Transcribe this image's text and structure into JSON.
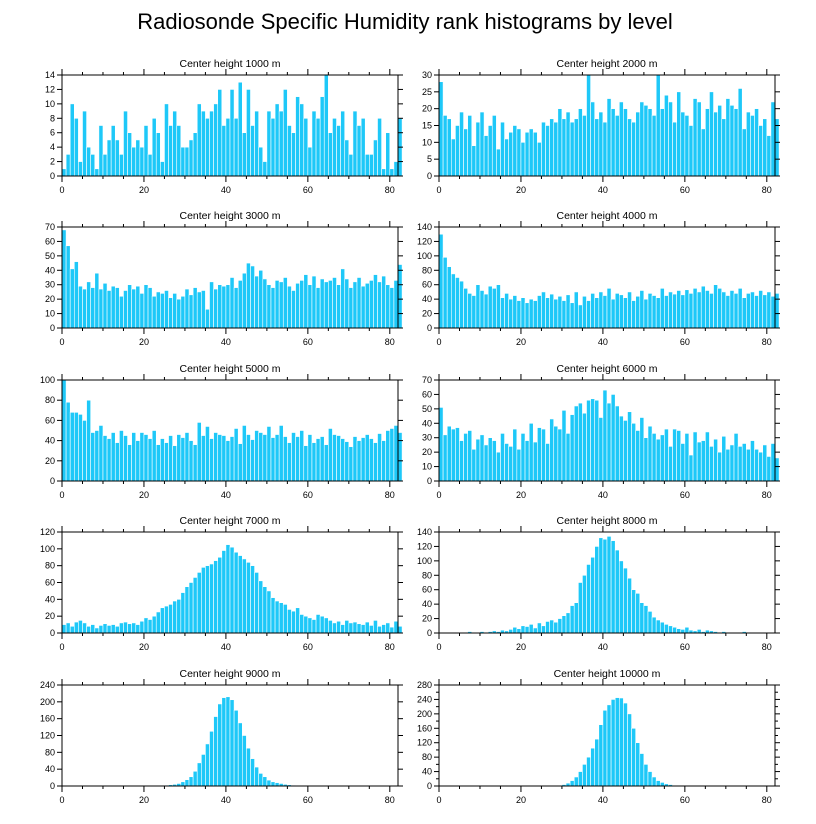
{
  "title": "Radiosonde Specific Humidity rank histograms by level",
  "bar_color": "#1ec8f8",
  "bar_edge_color": "#ffffff",
  "chart_data": [
    {
      "type": "bar",
      "title": "Center height 1000 m",
      "xlim": [
        0,
        82
      ],
      "ylim": [
        0,
        14
      ],
      "xticks": [
        0,
        20,
        40,
        60,
        80
      ],
      "yticks": [
        0,
        2,
        4,
        6,
        8,
        10,
        12,
        14
      ],
      "values": [
        1,
        3,
        10,
        8,
        2,
        9,
        4,
        3,
        1,
        7,
        3,
        5,
        7,
        5,
        3,
        9,
        6,
        4,
        5,
        4,
        7,
        3,
        8,
        6,
        2,
        10,
        7,
        9,
        7,
        4,
        4,
        5,
        6,
        10,
        9,
        8,
        9,
        10,
        12,
        7,
        8,
        12,
        8,
        13,
        6,
        12,
        7,
        9,
        4,
        2,
        9,
        8,
        10,
        9,
        12,
        7,
        6,
        11,
        10,
        8,
        4,
        9,
        8,
        11,
        14,
        6,
        8,
        7,
        9,
        5,
        3,
        9,
        7,
        8,
        3,
        3,
        5,
        8,
        1,
        6,
        1,
        2,
        8
      ]
    },
    {
      "type": "bar",
      "title": "Center height 2000 m",
      "xlim": [
        0,
        82
      ],
      "ylim": [
        0,
        30
      ],
      "xticks": [
        0,
        20,
        40,
        60,
        80
      ],
      "yticks": [
        0,
        5,
        10,
        15,
        20,
        25,
        30
      ],
      "values": [
        28,
        18,
        17,
        11,
        15,
        19,
        14,
        18,
        9,
        16,
        19,
        12,
        15,
        18,
        8,
        16,
        11,
        13,
        15,
        14,
        10,
        13,
        14,
        13,
        10,
        16,
        15,
        17,
        16,
        20,
        17,
        19,
        16,
        17,
        20,
        18,
        30,
        22,
        17,
        19,
        16,
        23,
        20,
        18,
        22,
        20,
        17,
        16,
        19,
        22,
        21,
        20,
        18,
        30,
        20,
        24,
        22,
        16,
        25,
        19,
        18,
        15,
        23,
        22,
        14,
        20,
        25,
        19,
        21,
        17,
        23,
        21,
        20,
        26,
        14,
        19,
        18,
        20,
        15,
        17,
        12,
        22,
        17
      ]
    },
    {
      "type": "bar",
      "title": "Center height 3000 m",
      "xlim": [
        0,
        82
      ],
      "ylim": [
        0,
        70
      ],
      "xticks": [
        0,
        20,
        40,
        60,
        80
      ],
      "yticks": [
        0,
        10,
        20,
        30,
        40,
        50,
        60,
        70
      ],
      "values": [
        68,
        57,
        41,
        46,
        29,
        27,
        32,
        28,
        38,
        27,
        31,
        26,
        29,
        28,
        22,
        26,
        30,
        27,
        29,
        24,
        30,
        28,
        22,
        25,
        24,
        26,
        21,
        24,
        20,
        22,
        27,
        23,
        28,
        25,
        26,
        13,
        32,
        27,
        30,
        29,
        30,
        35,
        28,
        33,
        38,
        45,
        43,
        36,
        40,
        34,
        30,
        28,
        33,
        32,
        35,
        29,
        26,
        31,
        33,
        37,
        30,
        36,
        28,
        34,
        32,
        33,
        35,
        30,
        41,
        34,
        28,
        32,
        35,
        29,
        31,
        33,
        37,
        32,
        36,
        30,
        28,
        33,
        44
      ]
    },
    {
      "type": "bar",
      "title": "Center height 4000 m",
      "xlim": [
        0,
        82
      ],
      "ylim": [
        0,
        140
      ],
      "xticks": [
        0,
        20,
        40,
        60,
        80
      ],
      "yticks": [
        0,
        20,
        40,
        60,
        80,
        100,
        120,
        140
      ],
      "values": [
        130,
        98,
        85,
        75,
        70,
        65,
        55,
        48,
        45,
        60,
        52,
        47,
        58,
        55,
        60,
        42,
        48,
        40,
        45,
        38,
        42,
        35,
        40,
        38,
        45,
        50,
        42,
        47,
        40,
        44,
        38,
        46,
        35,
        50,
        32,
        44,
        38,
        48,
        42,
        50,
        45,
        55,
        40,
        48,
        46,
        42,
        50,
        38,
        44,
        52,
        40,
        48,
        45,
        42,
        55,
        45,
        50,
        47,
        52,
        46,
        53,
        48,
        55,
        50,
        58,
        52,
        48,
        60,
        55,
        50,
        45,
        52,
        48,
        55,
        42,
        48,
        50,
        45,
        52,
        46,
        50,
        44,
        48
      ]
    },
    {
      "type": "bar",
      "title": "Center height 5000 m",
      "xlim": [
        0,
        82
      ],
      "ylim": [
        0,
        100
      ],
      "xticks": [
        0,
        20,
        40,
        60,
        80
      ],
      "yticks": [
        0,
        20,
        40,
        60,
        80,
        100
      ],
      "values": [
        100,
        78,
        68,
        68,
        66,
        60,
        80,
        48,
        50,
        55,
        45,
        42,
        48,
        38,
        50,
        45,
        36,
        48,
        40,
        48,
        46,
        42,
        50,
        36,
        42,
        38,
        45,
        35,
        46,
        43,
        48,
        40,
        36,
        58,
        45,
        54,
        42,
        48,
        46,
        45,
        40,
        44,
        52,
        37,
        55,
        46,
        41,
        50,
        48,
        46,
        54,
        43,
        46,
        55,
        44,
        38,
        48,
        44,
        50,
        35,
        46,
        38,
        42,
        44,
        36,
        52,
        46,
        45,
        42,
        39,
        34,
        44,
        40,
        43,
        46,
        42,
        38,
        47,
        40,
        50,
        52,
        55,
        48
      ]
    },
    {
      "type": "bar",
      "title": "Center height 6000 m",
      "xlim": [
        0,
        82
      ],
      "ylim": [
        0,
        70
      ],
      "xticks": [
        0,
        20,
        40,
        60,
        80
      ],
      "yticks": [
        0,
        10,
        20,
        30,
        40,
        50,
        60,
        70
      ],
      "values": [
        51,
        32,
        38,
        36,
        37,
        28,
        33,
        35,
        22,
        29,
        32,
        25,
        30,
        28,
        20,
        33,
        26,
        24,
        36,
        22,
        33,
        28,
        40,
        27,
        37,
        36,
        26,
        43,
        38,
        36,
        49,
        33,
        46,
        52,
        54,
        47,
        56,
        57,
        56,
        44,
        63,
        54,
        60,
        52,
        45,
        42,
        48,
        40,
        35,
        44,
        30,
        38,
        33,
        29,
        32,
        36,
        24,
        36,
        35,
        26,
        33,
        18,
        34,
        27,
        28,
        34,
        24,
        29,
        20,
        31,
        22,
        25,
        33,
        24,
        26,
        22,
        28,
        22,
        20,
        25,
        17,
        26,
        16
      ]
    },
    {
      "type": "bar",
      "title": "Center height 7000 m",
      "xlim": [
        0,
        82
      ],
      "ylim": [
        0,
        120
      ],
      "xticks": [
        0,
        20,
        40,
        60,
        80
      ],
      "yticks": [
        0,
        20,
        40,
        60,
        80,
        100,
        120
      ],
      "values": [
        10,
        12,
        8,
        13,
        15,
        12,
        8,
        10,
        6,
        9,
        11,
        9,
        10,
        8,
        12,
        13,
        11,
        12,
        10,
        14,
        18,
        16,
        20,
        25,
        30,
        32,
        34,
        38,
        40,
        48,
        55,
        60,
        66,
        72,
        78,
        80,
        82,
        86,
        90,
        98,
        105,
        102,
        96,
        92,
        88,
        84,
        80,
        72,
        62,
        55,
        50,
        42,
        38,
        36,
        34,
        28,
        26,
        30,
        22,
        20,
        18,
        16,
        22,
        20,
        18,
        15,
        12,
        14,
        10,
        15,
        12,
        13,
        11,
        10,
        13,
        9,
        15,
        8,
        10,
        12,
        7,
        14,
        8
      ]
    },
    {
      "type": "bar",
      "title": "Center height 8000 m",
      "xlim": [
        0,
        82
      ],
      "ylim": [
        0,
        140
      ],
      "xticks": [
        0,
        20,
        40,
        60,
        80
      ],
      "yticks": [
        0,
        20,
        40,
        60,
        80,
        100,
        120,
        140
      ],
      "values": [
        0,
        0,
        0,
        0,
        1,
        0,
        1,
        2,
        1,
        0,
        2,
        1,
        2,
        3,
        2,
        4,
        3,
        5,
        8,
        6,
        10,
        9,
        12,
        7,
        14,
        10,
        16,
        18,
        15,
        20,
        24,
        28,
        38,
        42,
        70,
        80,
        95,
        105,
        120,
        132,
        130,
        134,
        128,
        115,
        100,
        90,
        76,
        60,
        55,
        42,
        38,
        30,
        22,
        18,
        15,
        12,
        10,
        8,
        6,
        5,
        8,
        4,
        3,
        5,
        2,
        4,
        3,
        2,
        1,
        2,
        1,
        0,
        1,
        0,
        2,
        0,
        1,
        0,
        0,
        1,
        0,
        0,
        0
      ]
    },
    {
      "type": "bar",
      "title": "Center height 9000 m",
      "xlim": [
        0,
        82
      ],
      "ylim": [
        0,
        240
      ],
      "xticks": [
        0,
        20,
        40,
        60,
        80
      ],
      "yticks": [
        0,
        40,
        80,
        120,
        160,
        200,
        240
      ],
      "values": [
        0,
        0,
        0,
        0,
        0,
        0,
        0,
        0,
        0,
        0,
        0,
        0,
        0,
        0,
        0,
        0,
        0,
        0,
        0,
        0,
        0,
        0,
        1,
        0,
        1,
        2,
        3,
        4,
        6,
        10,
        15,
        22,
        35,
        55,
        75,
        100,
        130,
        165,
        195,
        210,
        212,
        205,
        180,
        150,
        120,
        90,
        65,
        45,
        30,
        22,
        14,
        10,
        8,
        6,
        4,
        3,
        2,
        1,
        1,
        0,
        1,
        0,
        0,
        0,
        0,
        0,
        0,
        0,
        0,
        0,
        0,
        0,
        0,
        0,
        0,
        0,
        0,
        0,
        0,
        0,
        0,
        0,
        0
      ]
    },
    {
      "type": "bar",
      "title": "Center height 10000 m",
      "xlim": [
        0,
        82
      ],
      "ylim": [
        0,
        280
      ],
      "xticks": [
        0,
        20,
        40,
        60,
        80
      ],
      "yticks": [
        0,
        40,
        80,
        120,
        160,
        200,
        240,
        280
      ],
      "yticks_minor": [
        20,
        60,
        100,
        140,
        180,
        220,
        260
      ],
      "values": [
        0,
        0,
        0,
        0,
        0,
        0,
        0,
        0,
        0,
        0,
        0,
        0,
        0,
        0,
        0,
        0,
        0,
        0,
        0,
        0,
        0,
        0,
        0,
        0,
        0,
        0,
        0,
        0,
        1,
        2,
        4,
        8,
        15,
        25,
        40,
        60,
        80,
        105,
        130,
        170,
        210,
        225,
        240,
        245,
        244,
        230,
        200,
        160,
        120,
        90,
        60,
        40,
        25,
        15,
        10,
        6,
        4,
        2,
        1,
        1,
        0,
        0,
        0,
        0,
        0,
        0,
        0,
        0,
        0,
        0,
        0,
        0,
        0,
        0,
        0,
        0,
        0,
        0,
        0,
        0,
        0,
        0,
        0
      ]
    }
  ]
}
